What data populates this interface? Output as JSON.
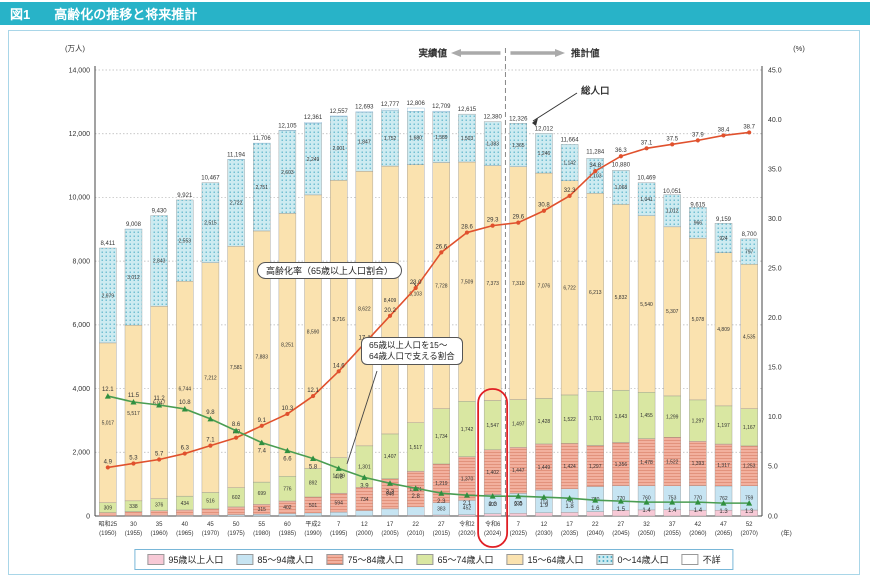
{
  "header": {
    "fig_no": "図1",
    "title": "高齢化の推移と将来推計"
  },
  "axis": {
    "left_unit": "(万人)",
    "right_unit": "(%)",
    "x_unit": "(年)",
    "left_max": 14000,
    "left_step": 2000,
    "right_max": 45,
    "right_step": 5
  },
  "labels": {
    "actual": "実績値",
    "projected": "推計値",
    "total_population": "総人口",
    "aging_rate_box": "高齢化率（65歳以上人口割合）",
    "support_line1": "65歳以上人口を15～",
    "support_line2": "64歳人口で支える割合"
  },
  "legend": [
    {
      "label": "95歳以上人口",
      "color": "#f7c9d6",
      "pattern": "solid"
    },
    {
      "label": "85～94歳人口",
      "color": "#c6e4f2",
      "pattern": "solid"
    },
    {
      "label": "75～84歳人口",
      "color": "#f2b09e",
      "pattern": "hlines"
    },
    {
      "label": "65～74歳人口",
      "color": "#d9e7a2",
      "pattern": "solid"
    },
    {
      "label": "15～64歳人口",
      "color": "#fae2af",
      "pattern": "solid"
    },
    {
      "label": "0～14歳人口",
      "color": "#cdebf1",
      "pattern": "dots"
    },
    {
      "label": "不詳",
      "color": "#ffffff",
      "pattern": "solid"
    }
  ],
  "chart_data": {
    "type": "stacked-bar+line",
    "left_axis": {
      "label": "(万人)",
      "min": 0,
      "max": 14000,
      "step": 2000
    },
    "right_axis": {
      "label": "(%)",
      "min": 0,
      "max": 45,
      "step": 5
    },
    "categories": [
      {
        "era": "昭和25",
        "year": "(1950)"
      },
      {
        "era": "30",
        "year": "(1955)"
      },
      {
        "era": "35",
        "year": "(1960)"
      },
      {
        "era": "40",
        "year": "(1965)"
      },
      {
        "era": "45",
        "year": "(1970)"
      },
      {
        "era": "50",
        "year": "(1975)"
      },
      {
        "era": "55",
        "year": "(1980)"
      },
      {
        "era": "60",
        "year": "(1985)"
      },
      {
        "era": "平成2",
        "year": "(1990)"
      },
      {
        "era": "7",
        "year": "(1995)"
      },
      {
        "era": "12",
        "year": "(2000)"
      },
      {
        "era": "17",
        "year": "(2005)"
      },
      {
        "era": "22",
        "year": "(2010)"
      },
      {
        "era": "27",
        "year": "(2015)"
      },
      {
        "era": "令和2",
        "year": "(2020)"
      },
      {
        "era": "令和6",
        "year": "(2024)"
      },
      {
        "era": "7",
        "year": "(2025)"
      },
      {
        "era": "12",
        "year": "(2030)"
      },
      {
        "era": "17",
        "year": "(2035)"
      },
      {
        "era": "22",
        "year": "(2040)"
      },
      {
        "era": "27",
        "year": "(2045)"
      },
      {
        "era": "32",
        "year": "(2050)"
      },
      {
        "era": "37",
        "year": "(2055)"
      },
      {
        "era": "42",
        "year": "(2060)"
      },
      {
        "era": "47",
        "year": "(2065)"
      },
      {
        "era": "52",
        "year": "(2070)"
      }
    ],
    "totals": [
      8411,
      9008,
      9430,
      9921,
      10467,
      11194,
      11706,
      12105,
      12361,
      12557,
      12693,
      12777,
      12806,
      12709,
      12615,
      12380,
      12326,
      12012,
      11664,
      11284,
      10880,
      10469,
      10051,
      9615,
      9159,
      8700
    ],
    "series": [
      {
        "name": "95歳以上人口",
        "color": "#f7c9d6",
        "pattern": "solid",
        "values": [
          0,
          0,
          0,
          1,
          1,
          1,
          2,
          3,
          4,
          6,
          11,
          16,
          23,
          31,
          39,
          72,
          84,
          100,
          113,
          137,
          181,
          191,
          195,
          184,
          180,
          188
        ]
      },
      {
        "name": "85～94歳人口",
        "color": "#c6e4f2",
        "pattern": "solid",
        "values": [
          9,
          14,
          18,
          22,
          28,
          36,
          49,
          66,
          92,
          117,
          155,
          207,
          264,
          383,
          452,
          603,
          625,
          713,
          741,
          780,
          770,
          760,
          753,
          770,
          762,
          759
        ]
      },
      {
        "name": "75～84歳人口",
        "color": "#f2b09e",
        "pattern": "hlines",
        "values": [
          98,
          123,
          146,
          167,
          194,
          248,
          315,
          402,
          501,
          594,
          734,
          946,
          1121,
          1219,
          1370,
          1402,
          1447,
          1449,
          1424,
          1297,
          1356,
          1478,
          1522,
          1393,
          1317,
          1253
        ]
      },
      {
        "name": "65～74歳人口",
        "color": "#d9e7a2",
        "pattern": "solid",
        "values": [
          309,
          338,
          376,
          434,
          516,
          602,
          699,
          776,
          892,
          1109,
          1301,
          1407,
          1517,
          1734,
          1742,
          1547,
          1497,
          1428,
          1522,
          1701,
          1643,
          1455,
          1299,
          1297,
          1197,
          1167
        ]
      },
      {
        "name": "15～64歳人口",
        "color": "#fae2af",
        "pattern": "solid",
        "values": [
          5017,
          5517,
          6047,
          6744,
          7212,
          7581,
          7883,
          8251,
          8590,
          8716,
          8622,
          8409,
          8103,
          7728,
          7509,
          7373,
          7310,
          7076,
          6722,
          6213,
          5832,
          5540,
          5307,
          5078,
          4809,
          4535
        ]
      },
      {
        "name": "0～14歳人口",
        "color": "#cdebf1",
        "pattern": "dots",
        "values": [
          2979,
          3012,
          2843,
          2553,
          2515,
          2722,
          2751,
          2603,
          2249,
          2001,
          1847,
          1752,
          1680,
          1589,
          1503,
          1383,
          1365,
          1246,
          1142,
          1103,
          1068,
          1041,
          1012,
          966,
          924,
          797
        ]
      },
      {
        "name": "不詳",
        "color": "#ffffff",
        "pattern": "solid",
        "values": [
          0,
          4,
          0,
          0,
          0,
          3,
          7,
          4,
          33,
          14,
          23,
          40,
          98,
          25,
          0,
          0,
          0,
          0,
          0,
          0,
          0,
          0,
          0,
          0,
          0,
          0
        ]
      }
    ],
    "lines": [
      {
        "name": "高齢化率（65歳以上人口割合）",
        "axis": "right",
        "color": "#e0512d",
        "values": [
          4.9,
          5.3,
          5.7,
          6.3,
          7.1,
          7.9,
          9.1,
          10.3,
          12.1,
          14.6,
          17.4,
          20.2,
          23.0,
          26.6,
          28.6,
          29.3,
          29.6,
          30.8,
          32.3,
          34.8,
          36.3,
          37.1,
          37.5,
          37.9,
          38.4,
          38.7
        ]
      },
      {
        "name": "65歳以上人口を15～64歳人口で支える割合",
        "axis": "right",
        "color": "#4a9d52",
        "values": [
          12.1,
          11.5,
          11.2,
          10.8,
          9.8,
          8.6,
          7.4,
          6.6,
          5.8,
          4.8,
          3.9,
          3.3,
          2.8,
          2.3,
          2.1,
          2.0,
          2.0,
          1.9,
          1.8,
          1.6,
          1.5,
          1.4,
          1.4,
          1.4,
          1.3,
          1.3
        ]
      }
    ],
    "divider_after_index": 15,
    "highlight_index": 15
  }
}
